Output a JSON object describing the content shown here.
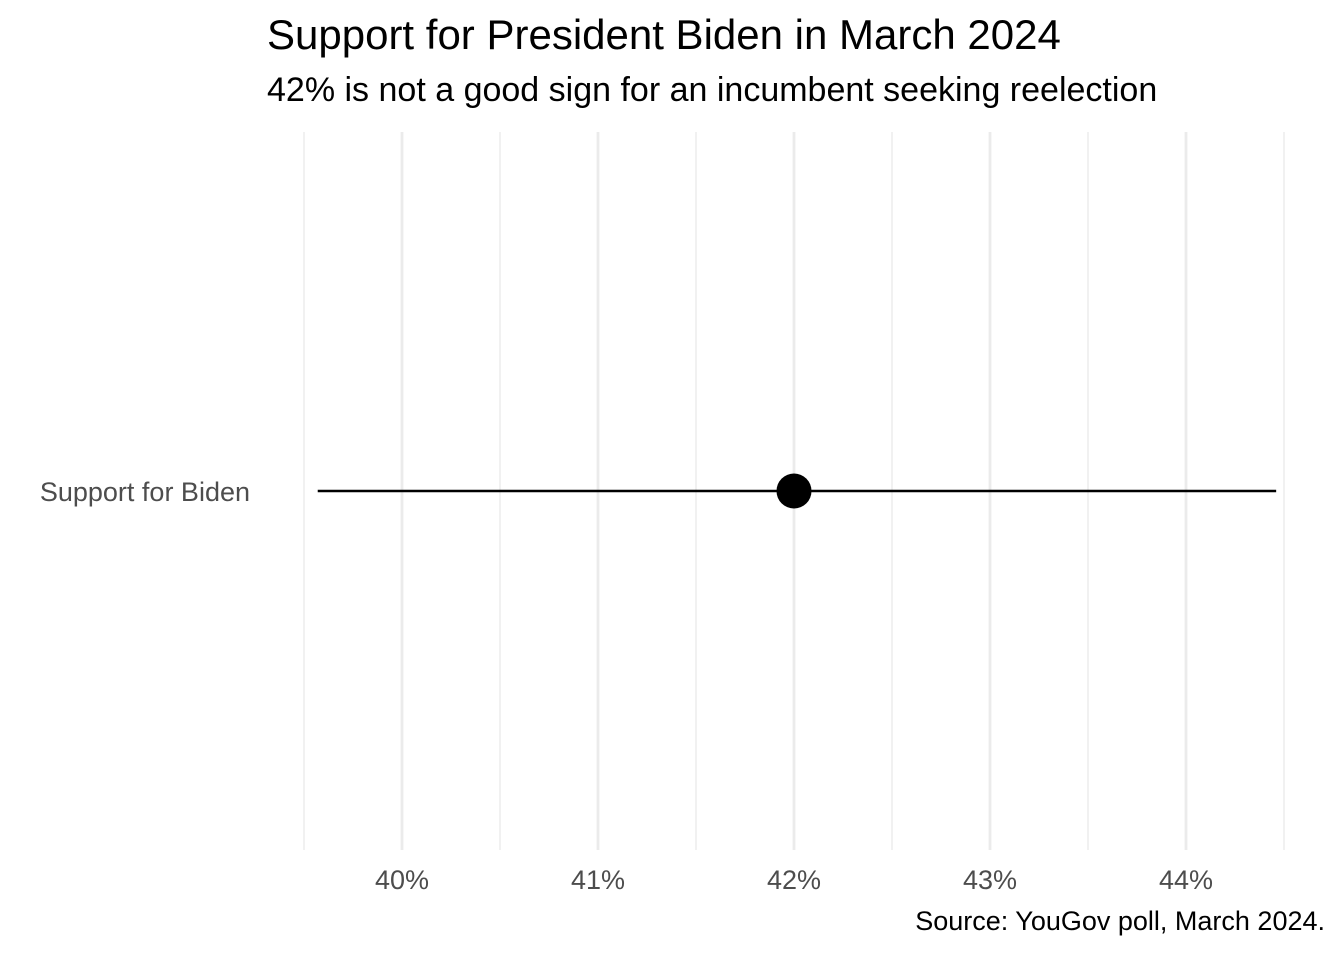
{
  "chart_data": {
    "type": "scatter",
    "title": "Support for President Biden in March 2024",
    "subtitle": "42% is not a good sign for an incumbent seeking reelection",
    "caption": "Source: YouGov poll, March 2024.",
    "xlabel": "",
    "ylabel": "",
    "categories": [
      "Support for Biden"
    ],
    "points": [
      {
        "category": "Support for Biden",
        "value": 42,
        "low": 39.57,
        "high": 44.46
      }
    ],
    "xlim": [
      39.5,
      44.5
    ],
    "x_ticks": [
      40,
      41,
      42,
      43,
      44
    ],
    "x_tick_labels": [
      "40%",
      "41%",
      "42%",
      "43%",
      "44%"
    ],
    "grid": {
      "major_x": true,
      "minor_x": true,
      "y": false
    },
    "legend": "none",
    "colors": {
      "point": "#000000",
      "errorbar": "#000000",
      "grid": "#ebebeb",
      "tick_text": "#4d4d4d"
    }
  }
}
